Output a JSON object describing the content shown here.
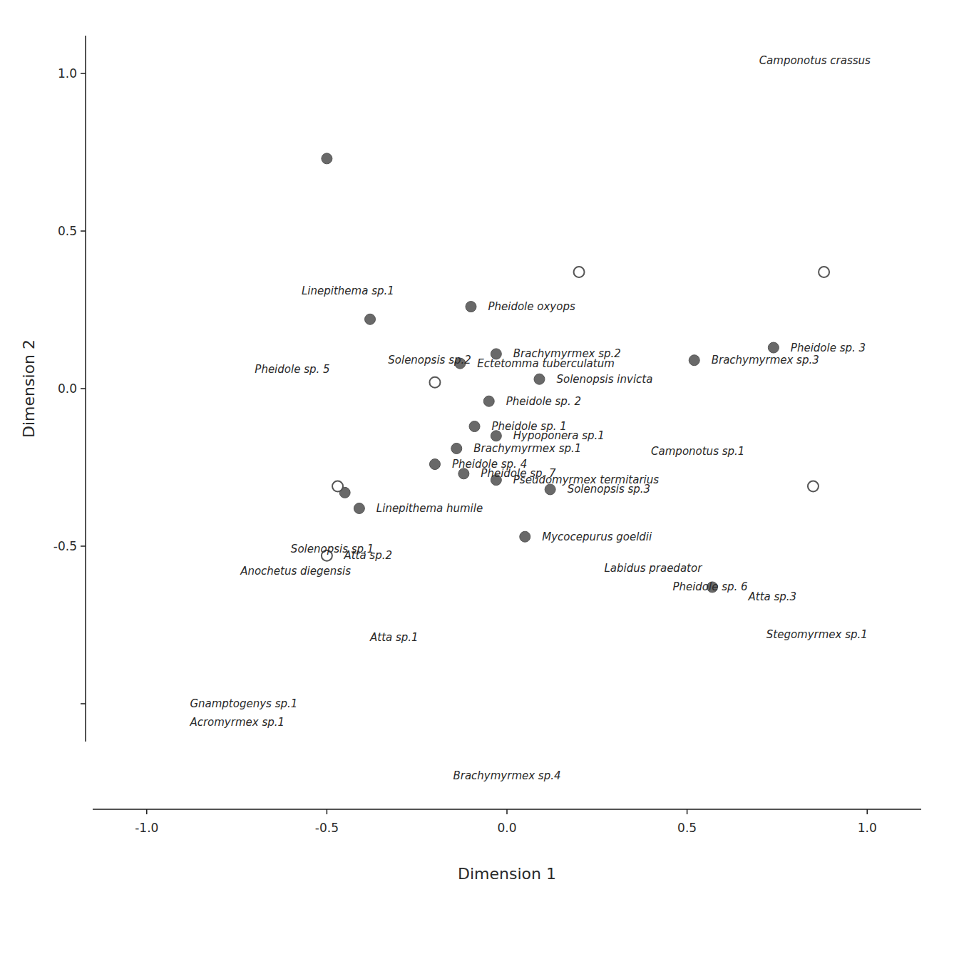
{
  "chart_data": {
    "type": "scatter",
    "x_label": "Dimension 1",
    "y_label": "Dimension 2",
    "xlim": [
      -1.15,
      1.15
    ],
    "ylim": [
      -1.12,
      1.12
    ],
    "xticks": [
      {
        "value": -1.0,
        "label": "-1.0"
      },
      {
        "value": -0.5,
        "label": "-0.5"
      },
      {
        "value": 0.0,
        "label": "0.0"
      },
      {
        "value": 0.5,
        "label": "0.5"
      },
      {
        "value": 1.0,
        "label": "1.0"
      }
    ],
    "yticks": [
      {
        "value": -1.0,
        "label": null
      },
      {
        "value": -0.5,
        "label": "-0.5"
      },
      {
        "value": 0.0,
        "label": "0.0"
      },
      {
        "value": 0.5,
        "label": "0.5"
      },
      {
        "value": 1.0,
        "label": "1.0"
      }
    ],
    "grid": false,
    "series": [
      {
        "marker": "circle",
        "color": "#696969",
        "x": [
          -0.5,
          -0.38,
          -0.1,
          -0.03,
          -0.13,
          0.09,
          -0.05,
          -0.09,
          -0.03,
          -0.14,
          -0.2,
          -0.12,
          -0.03,
          0.12,
          -0.45,
          -0.41,
          0.05,
          0.57,
          0.74,
          0.52
        ],
        "values": [
          0.73,
          0.22,
          0.26,
          0.11,
          0.08,
          0.03,
          -0.04,
          -0.12,
          -0.15,
          -0.19,
          -0.24,
          -0.27,
          -0.29,
          -0.32,
          -0.33,
          -0.38,
          -0.47,
          -0.63,
          0.13,
          0.09
        ],
        "labels": [
          null,
          null,
          "Pheidole oxyops",
          "Brachymyrmex sp.2",
          "Ectetomma tuberculatum",
          "Solenopsis invicta",
          "Pheidole sp. 2",
          "Pheidole sp. 1",
          "Hypoponera sp.1",
          "Brachymyrmex sp.1",
          "Pheidole sp. 4",
          "Pheidole sp. 7",
          "Pseudomyrmex termitarius",
          "Solenopsis sp.3",
          null,
          "Linepithema humile",
          "Mycocepurus goeldii",
          null,
          "Pheidole sp. 3",
          "Brachymyrmex sp.3"
        ]
      },
      {
        "marker": "circle-open",
        "color": "#ffffff",
        "x": [
          0.2,
          0.88,
          -0.2,
          -0.47,
          0.85,
          -0.5
        ],
        "values": [
          0.37,
          0.37,
          0.02,
          -0.31,
          -0.31,
          -0.53
        ],
        "labels": [
          null,
          null,
          null,
          null,
          null,
          "Atta sp.2"
        ]
      }
    ],
    "annotations": [
      {
        "text": "Linepithema sp.1",
        "x": -0.57,
        "y": 0.31
      },
      {
        "text": "Solenopsis sp.2",
        "x": -0.33,
        "y": 0.09
      },
      {
        "text": "Pheidole sp. 5",
        "x": -0.7,
        "y": 0.06
      },
      {
        "text": "Camponotus sp.1",
        "x": 0.4,
        "y": -0.2
      },
      {
        "text": "Solenopsis sp.1",
        "x": -0.6,
        "y": -0.51
      },
      {
        "text": "Anochetus diegensis",
        "x": -0.74,
        "y": -0.58
      },
      {
        "text": "Labidus praedator",
        "x": 0.27,
        "y": -0.57
      },
      {
        "text": "Pheidole sp. 6",
        "x": 0.46,
        "y": -0.63
      },
      {
        "text": "Atta sp.3",
        "x": 0.67,
        "y": -0.66
      },
      {
        "text": "Atta sp.1",
        "x": -0.38,
        "y": -0.79
      },
      {
        "text": "Stegomyrmex sp.1",
        "x": 0.72,
        "y": -0.78
      },
      {
        "text": "Gnamptogenys sp.1",
        "x": -0.88,
        "y": -1.0
      },
      {
        "text": "Acromyrmex sp.1",
        "x": -0.88,
        "y": -1.06
      },
      {
        "text": "Camponotus crassus",
        "x": 0.7,
        "y": 1.04
      },
      {
        "text": "Brachymyrmex sp.4"
      }
    ]
  }
}
